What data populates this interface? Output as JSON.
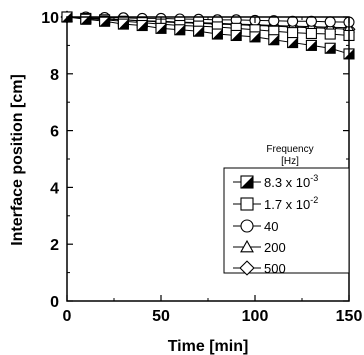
{
  "chart_data": {
    "type": "line",
    "xlabel": "Time [min]",
    "ylabel": "Interface position [cm]",
    "xlim": [
      0,
      150
    ],
    "ylim": [
      0,
      10
    ],
    "xticks": [
      "0",
      "50",
      "100",
      "150"
    ],
    "yticks": [
      "0",
      "2",
      "4",
      "6",
      "8",
      "10"
    ],
    "grid": false,
    "legend": {
      "title_line1": "Frequency",
      "title_line2": "[Hz]",
      "placement": "right"
    },
    "series": [
      {
        "name": "8.3 x 10",
        "name_exponent": "-3",
        "marker": "half-filled-square",
        "x": [
          0,
          10,
          20,
          30,
          40,
          50,
          60,
          70,
          80,
          90,
          100,
          110,
          120,
          130,
          140,
          150
        ],
        "y": [
          10.0,
          9.92,
          9.85,
          9.75,
          9.7,
          9.6,
          9.55,
          9.5,
          9.4,
          9.35,
          9.3,
          9.2,
          9.1,
          9.0,
          8.9,
          8.7
        ]
      },
      {
        "name": "1.7 x 10",
        "name_exponent": "-2",
        "marker": "square",
        "x": [
          0,
          10,
          20,
          30,
          40,
          50,
          60,
          70,
          80,
          90,
          100,
          110,
          120,
          130,
          140,
          150
        ],
        "y": [
          10.0,
          9.95,
          9.9,
          9.85,
          9.8,
          9.75,
          9.7,
          9.68,
          9.65,
          9.6,
          9.55,
          9.5,
          9.45,
          9.42,
          9.4,
          9.35
        ]
      },
      {
        "name": "40",
        "marker": "circle",
        "x": [
          0,
          10,
          20,
          30,
          40,
          50,
          60,
          70,
          80,
          90,
          100,
          110,
          120,
          130,
          140,
          150
        ],
        "y": [
          10.0,
          10.0,
          9.98,
          9.97,
          9.95,
          9.95,
          9.93,
          9.92,
          9.9,
          9.9,
          9.88,
          9.87,
          9.85,
          9.85,
          9.83,
          9.82
        ]
      },
      {
        "name": "200",
        "marker": "triangle",
        "x": [
          0,
          10,
          20,
          30,
          40,
          50,
          60,
          70,
          80,
          90,
          100,
          110,
          120,
          130,
          140,
          150
        ],
        "y": [
          10.0,
          9.97,
          9.94,
          9.9,
          9.87,
          9.85,
          9.82,
          9.8,
          9.78,
          9.75,
          9.73,
          9.7,
          9.68,
          9.66,
          9.64,
          9.62
        ]
      },
      {
        "name": "500",
        "marker": "diamond",
        "x": [
          0,
          10,
          20,
          30,
          40,
          50,
          60,
          70,
          80,
          90,
          100,
          110,
          120,
          130,
          140,
          150
        ],
        "y": [
          10.0,
          9.97,
          9.93,
          9.9,
          9.86,
          9.83,
          9.8,
          9.78,
          9.75,
          9.73,
          9.7,
          9.68,
          9.65,
          9.62,
          9.6,
          9.57
        ]
      }
    ]
  }
}
